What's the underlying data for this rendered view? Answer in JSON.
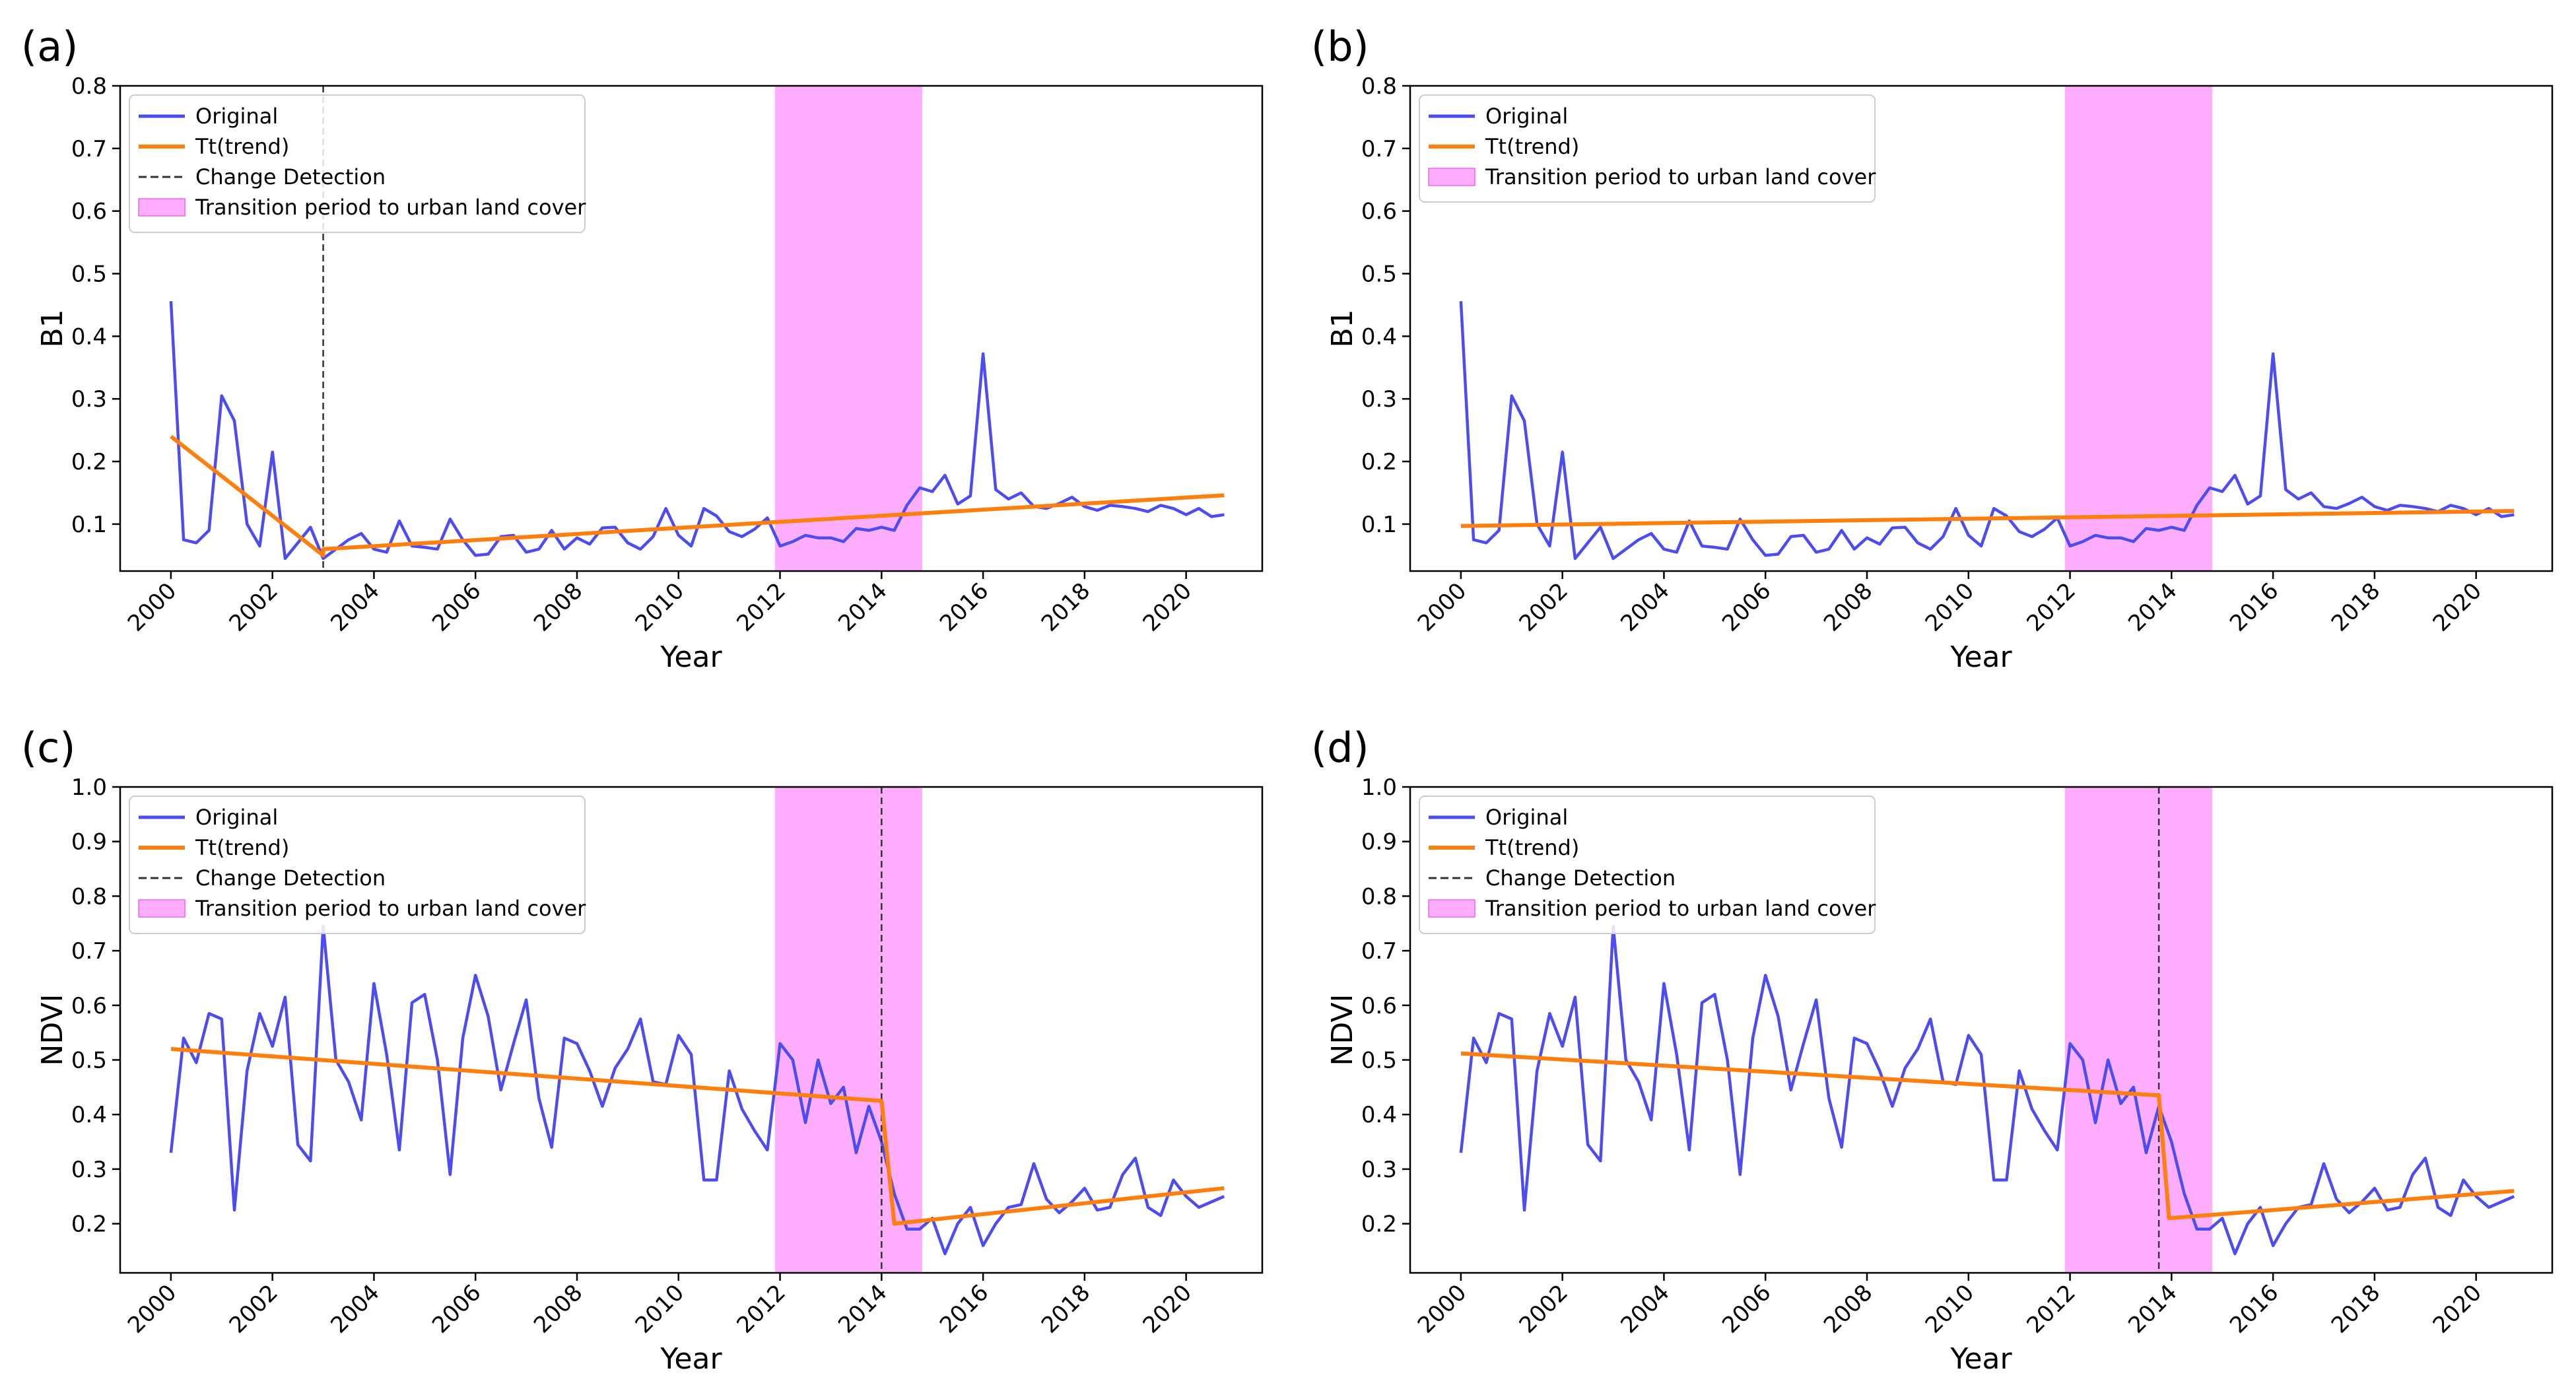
{
  "figure": {
    "colors": {
      "original": "#4c4cf0",
      "trend": "#ff7f0e",
      "change": "#333333",
      "transition": "#ff8cff"
    }
  },
  "chart_data": [
    {
      "type": "line",
      "panel": "(a)",
      "xlabel": "Year",
      "ylabel": "B1",
      "xlim": [
        1999,
        2021.5
      ],
      "ylim": [
        0.025,
        0.8
      ],
      "xticks": [
        2000,
        2002,
        2004,
        2006,
        2008,
        2010,
        2012,
        2014,
        2016,
        2018,
        2020
      ],
      "yticks": [
        0.1,
        0.2,
        0.3,
        0.4,
        0.5,
        0.6,
        0.7,
        0.8
      ],
      "yticks_decimals": 1,
      "legend": [
        "Original",
        "Tt(trend)",
        "Change Detection",
        "Transition period to urban land cover"
      ],
      "legend_position": "upper-left",
      "transition_period": [
        2011.9,
        2014.8
      ],
      "change_detection": [
        2003.0
      ],
      "series": [
        {
          "name": "Original",
          "x_start": 2000,
          "x_step": 0.25,
          "values": [
            0.456,
            0.075,
            0.07,
            0.09,
            0.305,
            0.265,
            0.1,
            0.065,
            0.215,
            0.045,
            0.07,
            0.095,
            0.045,
            0.06,
            0.075,
            0.085,
            0.06,
            0.055,
            0.105,
            0.065,
            0.063,
            0.06,
            0.108,
            0.075,
            0.05,
            0.052,
            0.08,
            0.082,
            0.055,
            0.06,
            0.09,
            0.06,
            0.078,
            0.068,
            0.094,
            0.095,
            0.07,
            0.06,
            0.08,
            0.125,
            0.082,
            0.065,
            0.125,
            0.113,
            0.088,
            0.08,
            0.092,
            0.11,
            0.065,
            0.072,
            0.082,
            0.078,
            0.078,
            0.072,
            0.093,
            0.09,
            0.095,
            0.09,
            0.13,
            0.158,
            0.152,
            0.178,
            0.132,
            0.145,
            0.372,
            0.155,
            0.14,
            0.15,
            0.128,
            0.125,
            0.133,
            0.143,
            0.128,
            0.122,
            0.13,
            0.128,
            0.125,
            0.12,
            0.13,
            0.125,
            0.115,
            0.125,
            0.112,
            0.115
          ]
        },
        {
          "name": "Tt(trend)",
          "x": [
            2000,
            2003.0,
            2003.0,
            2020.75
          ],
          "values": [
            0.24,
            0.05,
            0.06,
            0.146
          ]
        }
      ]
    },
    {
      "type": "line",
      "panel": "(b)",
      "xlabel": "Year",
      "ylabel": "B1",
      "xlim": [
        1999,
        2021.5
      ],
      "ylim": [
        0.025,
        0.8
      ],
      "xticks": [
        2000,
        2002,
        2004,
        2006,
        2008,
        2010,
        2012,
        2014,
        2016,
        2018,
        2020
      ],
      "yticks": [
        0.1,
        0.2,
        0.3,
        0.4,
        0.5,
        0.6,
        0.7,
        0.8
      ],
      "yticks_decimals": 1,
      "legend": [
        "Original",
        "Tt(trend)",
        "Transition period to urban land cover"
      ],
      "legend_position": "upper-left",
      "transition_period": [
        2011.9,
        2014.8
      ],
      "change_detection": [],
      "series": [
        {
          "name": "Original",
          "x_start": 2000,
          "x_step": 0.25,
          "values": [
            0.456,
            0.075,
            0.07,
            0.09,
            0.305,
            0.265,
            0.1,
            0.065,
            0.215,
            0.045,
            0.07,
            0.095,
            0.045,
            0.06,
            0.075,
            0.085,
            0.06,
            0.055,
            0.105,
            0.065,
            0.063,
            0.06,
            0.108,
            0.075,
            0.05,
            0.052,
            0.08,
            0.082,
            0.055,
            0.06,
            0.09,
            0.06,
            0.078,
            0.068,
            0.094,
            0.095,
            0.07,
            0.06,
            0.08,
            0.125,
            0.082,
            0.065,
            0.125,
            0.113,
            0.088,
            0.08,
            0.092,
            0.11,
            0.065,
            0.072,
            0.082,
            0.078,
            0.078,
            0.072,
            0.093,
            0.09,
            0.095,
            0.09,
            0.13,
            0.158,
            0.152,
            0.178,
            0.132,
            0.145,
            0.372,
            0.155,
            0.14,
            0.15,
            0.128,
            0.125,
            0.133,
            0.143,
            0.128,
            0.122,
            0.13,
            0.128,
            0.125,
            0.12,
            0.13,
            0.125,
            0.115,
            0.125,
            0.112,
            0.115
          ]
        },
        {
          "name": "Tt(trend)",
          "x": [
            2000,
            2020.75
          ],
          "values": [
            0.097,
            0.121
          ]
        }
      ]
    },
    {
      "type": "line",
      "panel": "(c)",
      "xlabel": "Year",
      "ylabel": "NDVI",
      "xlim": [
        1999,
        2021.5
      ],
      "ylim": [
        0.11,
        1.0
      ],
      "xticks": [
        2000,
        2002,
        2004,
        2006,
        2008,
        2010,
        2012,
        2014,
        2016,
        2018,
        2020
      ],
      "yticks": [
        0.2,
        0.3,
        0.4,
        0.5,
        0.6,
        0.7,
        0.8,
        0.9,
        1.0
      ],
      "yticks_decimals": 1,
      "legend": [
        "Original",
        "Tt(trend)",
        "Change Detection",
        "Transition period to urban land cover"
      ],
      "legend_position": "upper-left",
      "transition_period": [
        2011.9,
        2014.8
      ],
      "change_detection": [
        2014.0
      ],
      "series": [
        {
          "name": "Original",
          "x_start": 2000,
          "x_step": 0.25,
          "values": [
            0.33,
            0.54,
            0.495,
            0.585,
            0.575,
            0.225,
            0.48,
            0.585,
            0.525,
            0.615,
            0.345,
            0.315,
            0.745,
            0.5,
            0.46,
            0.39,
            0.64,
            0.51,
            0.335,
            0.605,
            0.62,
            0.5,
            0.29,
            0.54,
            0.655,
            0.58,
            0.445,
            0.53,
            0.61,
            0.43,
            0.34,
            0.54,
            0.53,
            0.48,
            0.415,
            0.485,
            0.52,
            0.575,
            0.46,
            0.455,
            0.545,
            0.51,
            0.28,
            0.28,
            0.48,
            0.41,
            0.37,
            0.335,
            0.53,
            0.5,
            0.385,
            0.5,
            0.42,
            0.45,
            0.33,
            0.415,
            0.35,
            0.255,
            0.19,
            0.19,
            0.21,
            0.145,
            0.2,
            0.23,
            0.16,
            0.2,
            0.23,
            0.235,
            0.31,
            0.245,
            0.22,
            0.24,
            0.265,
            0.225,
            0.23,
            0.29,
            0.32,
            0.23,
            0.215,
            0.28,
            0.25,
            0.23,
            0.24,
            0.25
          ]
        },
        {
          "name": "Tt(trend)",
          "x": [
            2000,
            2014.0,
            2014.25,
            2020.75
          ],
          "values": [
            0.52,
            0.425,
            0.2,
            0.265
          ]
        }
      ]
    },
    {
      "type": "line",
      "panel": "(d)",
      "xlabel": "Year",
      "ylabel": "NDVI",
      "xlim": [
        1999,
        2021.5
      ],
      "ylim": [
        0.11,
        1.0
      ],
      "xticks": [
        2000,
        2002,
        2004,
        2006,
        2008,
        2010,
        2012,
        2014,
        2016,
        2018,
        2020
      ],
      "yticks": [
        0.2,
        0.3,
        0.4,
        0.5,
        0.6,
        0.7,
        0.8,
        0.9,
        1.0
      ],
      "yticks_decimals": 1,
      "legend": [
        "Original",
        "Tt(trend)",
        "Change Detection",
        "Transition period to urban land cover"
      ],
      "legend_position": "upper-left",
      "transition_period": [
        2011.9,
        2014.8
      ],
      "change_detection": [
        2013.75
      ],
      "series": [
        {
          "name": "Original",
          "x_start": 2000,
          "x_step": 0.25,
          "values": [
            0.33,
            0.54,
            0.495,
            0.585,
            0.575,
            0.225,
            0.48,
            0.585,
            0.525,
            0.615,
            0.345,
            0.315,
            0.745,
            0.5,
            0.46,
            0.39,
            0.64,
            0.51,
            0.335,
            0.605,
            0.62,
            0.5,
            0.29,
            0.54,
            0.655,
            0.58,
            0.445,
            0.53,
            0.61,
            0.43,
            0.34,
            0.54,
            0.53,
            0.48,
            0.415,
            0.485,
            0.52,
            0.575,
            0.46,
            0.455,
            0.545,
            0.51,
            0.28,
            0.28,
            0.48,
            0.41,
            0.37,
            0.335,
            0.53,
            0.5,
            0.385,
            0.5,
            0.42,
            0.45,
            0.33,
            0.415,
            0.35,
            0.255,
            0.19,
            0.19,
            0.21,
            0.145,
            0.2,
            0.23,
            0.16,
            0.2,
            0.23,
            0.235,
            0.31,
            0.245,
            0.22,
            0.24,
            0.265,
            0.225,
            0.23,
            0.29,
            0.32,
            0.23,
            0.215,
            0.28,
            0.25,
            0.23,
            0.24,
            0.25
          ]
        },
        {
          "name": "Tt(trend)",
          "x": [
            2000,
            2013.75,
            2013.95,
            2020.75
          ],
          "values": [
            0.512,
            0.435,
            0.21,
            0.26
          ]
        }
      ]
    }
  ]
}
